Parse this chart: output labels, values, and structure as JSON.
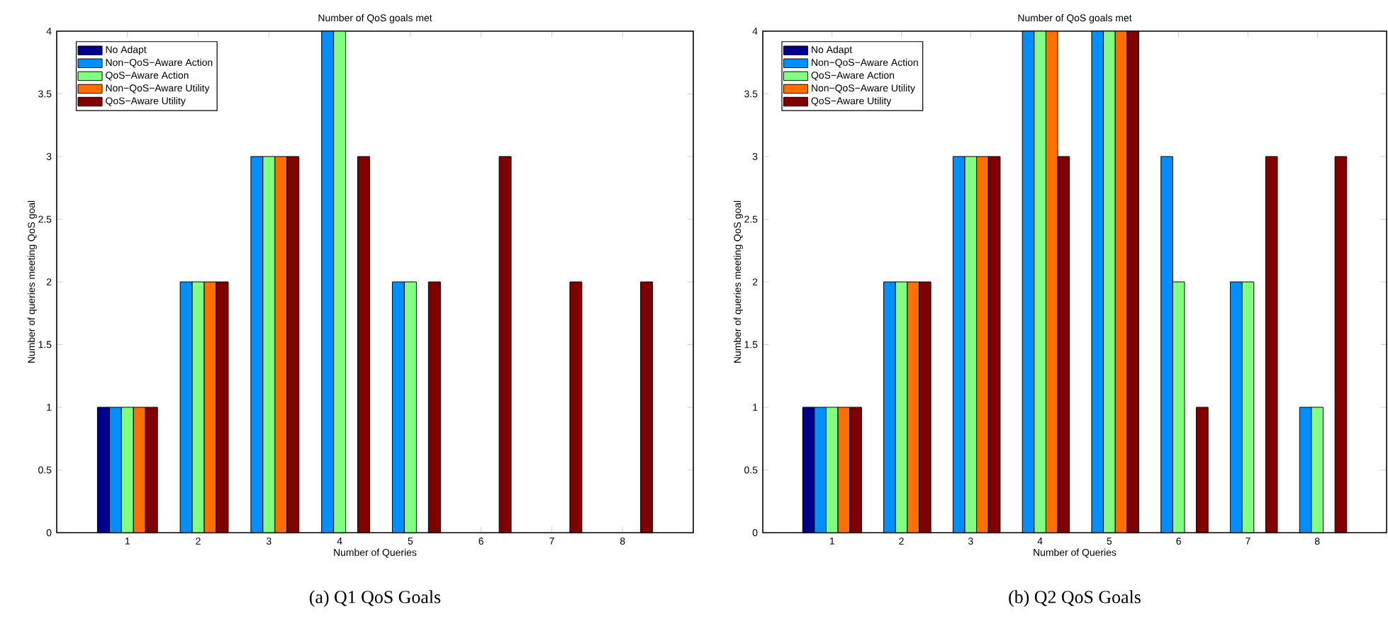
{
  "chart_data": [
    {
      "type": "bar",
      "title": "Number of QoS goals met",
      "xlabel": "Number of Queries",
      "ylabel": "Number of queries meeting QoS goal",
      "x": [
        1,
        2,
        3,
        4,
        5,
        6,
        7,
        8
      ],
      "xlim": [
        0,
        9
      ],
      "xticks": [
        1,
        2,
        3,
        4,
        5,
        6,
        7,
        8
      ],
      "ylim": [
        0,
        4
      ],
      "yticks": [
        0,
        0.5,
        1,
        1.5,
        2,
        2.5,
        3,
        3.5,
        4
      ],
      "legend": "top left",
      "annotations": [
        "(a) Q1 QoS Goals"
      ],
      "series": [
        {
          "name": "No Adapt",
          "color": "#00008f",
          "values": [
            1,
            null,
            null,
            null,
            null,
            null,
            null,
            null
          ]
        },
        {
          "name": "Non−QoS−Aware Action",
          "color": "#008fff",
          "values": [
            1,
            2,
            3,
            4,
            2,
            null,
            null,
            null
          ]
        },
        {
          "name": "QoS−Aware Action",
          "color": "#80ff80",
          "values": [
            1,
            2,
            3,
            4,
            2,
            null,
            null,
            null
          ]
        },
        {
          "name": "Non−QoS−Aware Utility",
          "color": "#ff7000",
          "values": [
            1,
            2,
            3,
            null,
            null,
            null,
            null,
            null
          ]
        },
        {
          "name": "QoS−Aware Utility",
          "color": "#800000",
          "values": [
            1,
            2,
            3,
            3,
            2,
            3,
            2,
            2
          ]
        }
      ]
    },
    {
      "type": "bar",
      "title": "Number of QoS goals met",
      "xlabel": "Number of Queries",
      "ylabel": "Number of queries meeting QoS goal",
      "x": [
        1,
        2,
        3,
        4,
        5,
        6,
        7,
        8
      ],
      "xlim": [
        0,
        9
      ],
      "xticks": [
        1,
        2,
        3,
        4,
        5,
        6,
        7,
        8
      ],
      "ylim": [
        0,
        4
      ],
      "yticks": [
        0,
        0.5,
        1,
        1.5,
        2,
        2.5,
        3,
        3.5,
        4
      ],
      "legend": "top left",
      "annotations": [
        "(b) Q2 QoS Goals"
      ],
      "series": [
        {
          "name": "No Adapt",
          "color": "#00008f",
          "values": [
            1,
            null,
            null,
            null,
            null,
            null,
            null,
            null
          ]
        },
        {
          "name": "Non−QoS−Aware Action",
          "color": "#008fff",
          "values": [
            1,
            2,
            3,
            4,
            4,
            3,
            2,
            1
          ]
        },
        {
          "name": "QoS−Aware Action",
          "color": "#80ff80",
          "values": [
            1,
            2,
            3,
            4,
            4,
            2,
            2,
            1
          ]
        },
        {
          "name": "Non−QoS−Aware Utility",
          "color": "#ff7000",
          "values": [
            1,
            2,
            3,
            4,
            4,
            null,
            null,
            null
          ]
        },
        {
          "name": "QoS−Aware Utility",
          "color": "#800000",
          "values": [
            1,
            2,
            3,
            3,
            4,
            1,
            3,
            3
          ]
        }
      ]
    }
  ]
}
